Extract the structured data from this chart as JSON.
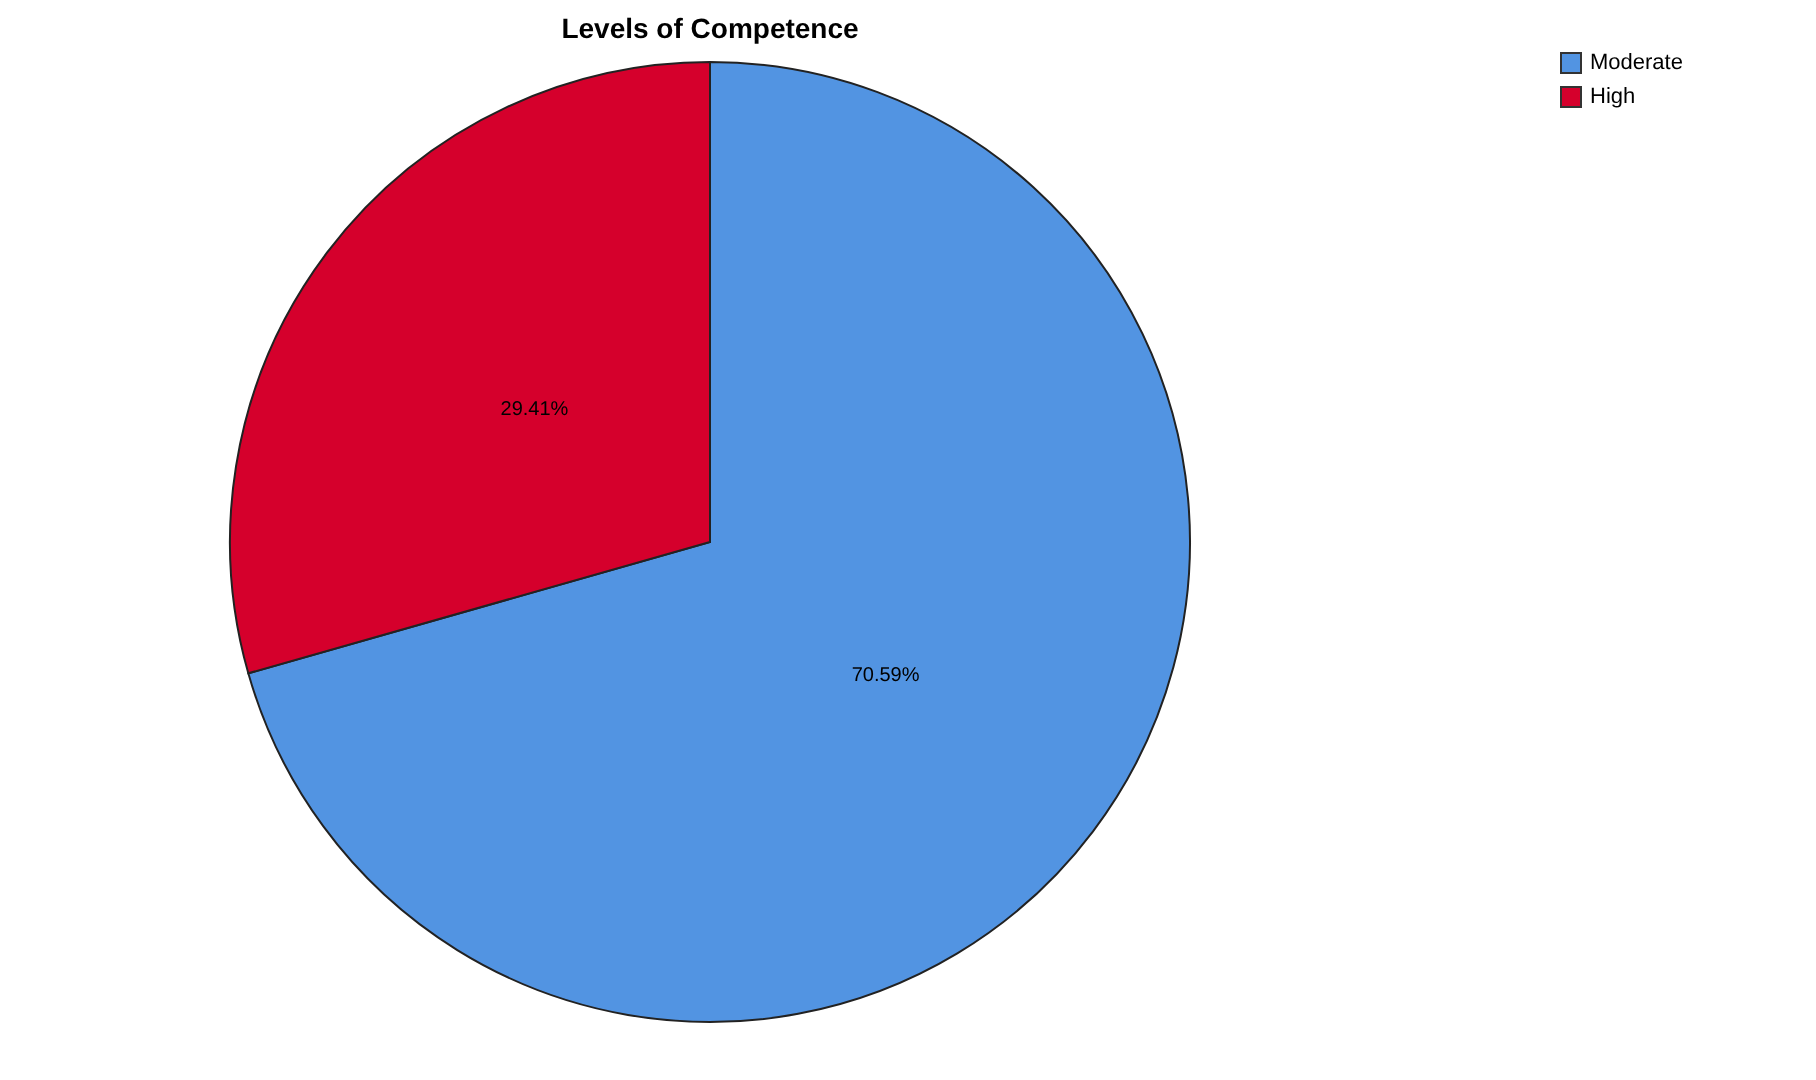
{
  "chart_data": {
    "type": "pie",
    "title": "Levels of Competence",
    "categories": [
      "Moderate",
      "High"
    ],
    "values": [
      70.59,
      29.41
    ],
    "colors": [
      "#5294e2",
      "#d5002c"
    ],
    "value_labels": [
      "70.59%",
      "29.41%"
    ],
    "legend": "top right"
  }
}
